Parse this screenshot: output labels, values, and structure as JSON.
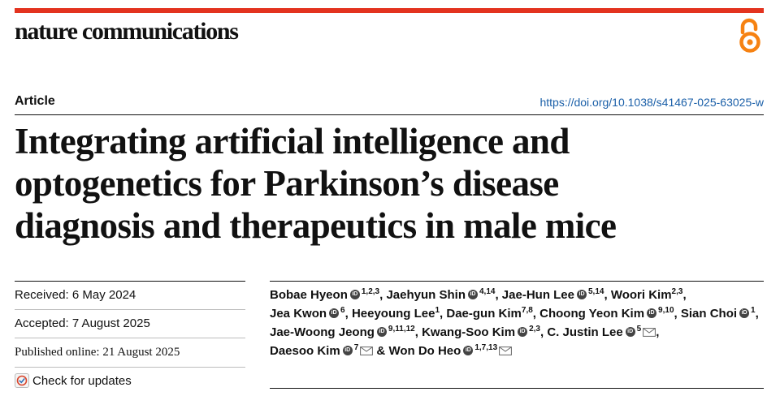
{
  "header": {
    "journal_name": "nature communications",
    "open_access_icon": "open-access-icon",
    "brand_color": "#e3331f"
  },
  "article": {
    "type": "Article",
    "doi": "https://doi.org/10.1038/s41467-025-63025-w",
    "title_lines": [
      "Integrating artificial intelligence and",
      "optogenetics for Parkinson’s disease",
      "diagnosis and therapeutics in male mice"
    ]
  },
  "dates": {
    "received": "Received: 6 May 2024",
    "accepted": "Accepted: 7 August 2025",
    "published": "Published online: 21 August 2025"
  },
  "check_updates": {
    "label": "Check for updates",
    "icon": "check-for-updates-icon"
  },
  "authors": [
    {
      "name": "Bobae Hyeon",
      "orcid": true,
      "aff": "1,2,3",
      "corresponding": false,
      "sep": ", "
    },
    {
      "name": "Jaehyun Shin",
      "orcid": true,
      "aff": "4,14",
      "corresponding": false,
      "sep": ", "
    },
    {
      "name": "Jae-Hun Lee",
      "orcid": true,
      "aff": "5,14",
      "corresponding": false,
      "sep": ", "
    },
    {
      "name": "Woori Kim",
      "orcid": false,
      "aff": "2,3",
      "corresponding": false,
      "sep": ", "
    },
    {
      "name": "Jea Kwon",
      "orcid": true,
      "aff": "6",
      "corresponding": false,
      "sep": ", "
    },
    {
      "name": "Heeyoung Lee",
      "orcid": false,
      "aff": "1",
      "corresponding": false,
      "sep": ", "
    },
    {
      "name": "Dae-gun Kim",
      "orcid": false,
      "aff": "7,8",
      "corresponding": false,
      "sep": ", "
    },
    {
      "name": "Choong Yeon Kim",
      "orcid": true,
      "aff": "9,10",
      "corresponding": false,
      "sep": ", "
    },
    {
      "name": "Sian Choi",
      "orcid": true,
      "aff": "1",
      "corresponding": false,
      "sep": ", "
    },
    {
      "name": "Jae-Woong Jeong",
      "orcid": true,
      "aff": "9,11,12",
      "corresponding": false,
      "sep": ", "
    },
    {
      "name": "Kwang-Soo Kim",
      "orcid": true,
      "aff": "2,3",
      "corresponding": false,
      "sep": ", "
    },
    {
      "name": "C. Justin Lee",
      "orcid": true,
      "aff": "5",
      "corresponding": true,
      "sep": ", "
    },
    {
      "name": "Daesoo Kim",
      "orcid": true,
      "aff": "7",
      "corresponding": true,
      "sep": " & "
    },
    {
      "name": "Won Do Heo",
      "orcid": true,
      "aff": "1,7,13",
      "corresponding": true,
      "sep": ""
    }
  ]
}
